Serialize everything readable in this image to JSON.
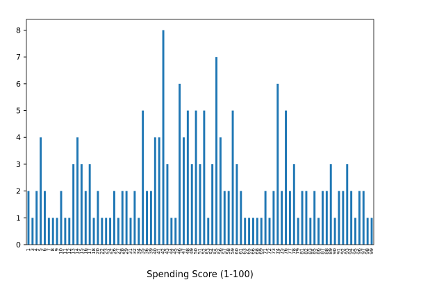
{
  "chart_data": {
    "type": "bar",
    "x_label": "Spending Score (1-100)",
    "categories": [
      "1",
      "3",
      "4",
      "5",
      "6",
      "7",
      "8",
      "9",
      "10",
      "11",
      "12",
      "13",
      "14",
      "15",
      "16",
      "17",
      "18",
      "20",
      "22",
      "23",
      "24",
      "26",
      "27",
      "28",
      "29",
      "31",
      "32",
      "34",
      "35",
      "36",
      "39",
      "40",
      "41",
      "42",
      "43",
      "44",
      "45",
      "46",
      "47",
      "48",
      "49",
      "50",
      "51",
      "52",
      "53",
      "54",
      "55",
      "56",
      "57",
      "58",
      "59",
      "60",
      "61",
      "63",
      "65",
      "66",
      "68",
      "69",
      "71",
      "72",
      "73",
      "74",
      "75",
      "76",
      "77",
      "78",
      "79",
      "81",
      "82",
      "83",
      "85",
      "86",
      "87",
      "88",
      "89",
      "90",
      "91",
      "92",
      "93",
      "94",
      "95",
      "96",
      "97",
      "98",
      "99"
    ],
    "values": [
      2,
      1,
      2,
      4,
      2,
      1,
      1,
      1,
      2,
      1,
      1,
      3,
      4,
      3,
      2,
      3,
      1,
      2,
      1,
      1,
      1,
      2,
      1,
      2,
      2,
      1,
      2,
      1,
      5,
      2,
      2,
      4,
      4,
      8,
      3,
      1,
      1,
      6,
      4,
      5,
      3,
      5,
      3,
      5,
      1,
      3,
      7,
      4,
      2,
      2,
      5,
      3,
      2,
      1,
      1,
      1,
      1,
      1,
      2,
      1,
      2,
      6,
      2,
      5,
      2,
      3,
      1,
      2,
      2,
      1,
      2,
      1,
      2,
      2,
      3,
      1,
      2,
      2,
      3,
      2,
      1,
      2,
      2,
      1,
      1
    ],
    "color": "#1f77b4",
    "ylim": [
      0,
      8.4
    ],
    "yticks": [
      0,
      1,
      2,
      3,
      4,
      5,
      6,
      7,
      8
    ],
    "grid": false
  }
}
